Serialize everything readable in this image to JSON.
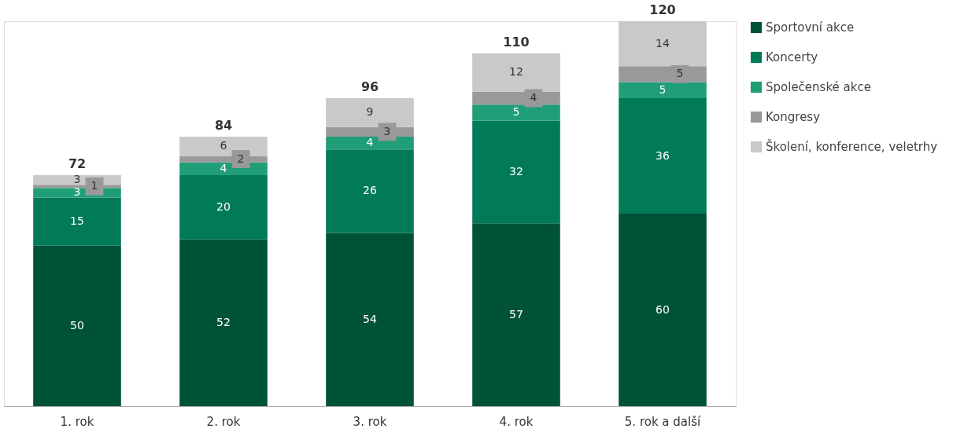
{
  "chart_data": {
    "type": "bar",
    "stacked": true,
    "data_labels": true,
    "legend": "top right",
    "grid": false,
    "categories": [
      "1. rok",
      "2. rok",
      "3. rok",
      "4. rok",
      "5. rok a další"
    ],
    "series": [
      {
        "name": "Sportovní akce",
        "color": "#005239",
        "values": [
          50,
          52,
          54,
          57,
          60
        ]
      },
      {
        "name": "Koncerty",
        "color": "#007a57",
        "values": [
          15,
          20,
          26,
          32,
          36
        ]
      },
      {
        "name": "Společenské akce",
        "color": "#1f9e78",
        "values": [
          3,
          4,
          4,
          5,
          5
        ]
      },
      {
        "name": "Kongresy",
        "color": "#999999",
        "values": [
          1,
          2,
          3,
          4,
          5
        ]
      },
      {
        "name": "Školení, konference, veletrhy",
        "color": "#c9c9c9",
        "values": [
          3,
          6,
          9,
          12,
          14
        ]
      }
    ],
    "totals": [
      "72",
      "84",
      "96",
      "110",
      "120"
    ]
  }
}
